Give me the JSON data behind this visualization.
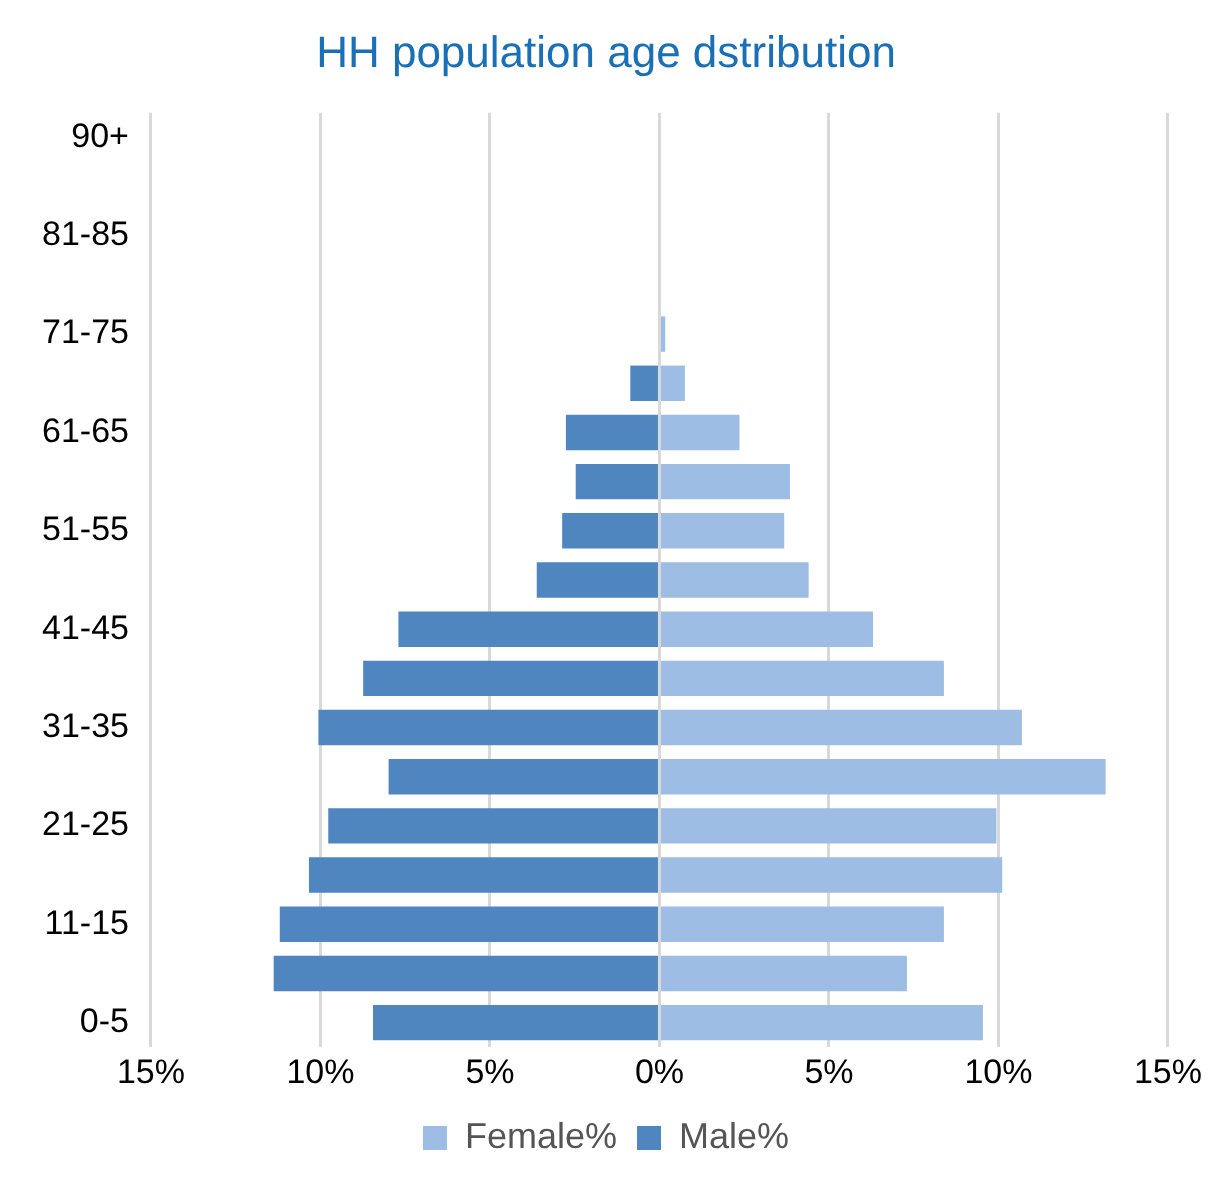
{
  "chart_data": {
    "type": "bar",
    "orientation": "horizontal",
    "stacked": true,
    "title": "HH population age dstribution",
    "categories": [
      "90+",
      null,
      "81-85",
      null,
      "71-75",
      null,
      "61-65",
      null,
      "51-55",
      null,
      "41-45",
      null,
      "31-35",
      null,
      "21-25",
      null,
      "11-15",
      null,
      "0-5"
    ],
    "series": [
      {
        "name": "Female%",
        "color": "#9dbde4",
        "values": [
          null,
          null,
          null,
          null,
          0.17,
          0.75,
          2.36,
          3.85,
          3.68,
          4.4,
          6.3,
          8.39,
          10.69,
          13.16,
          9.94,
          10.11,
          8.39,
          7.3,
          9.54
        ]
      },
      {
        "name": "Male%",
        "color": "#4f86c0",
        "values": [
          null,
          null,
          null,
          null,
          null,
          -0.86,
          -2.76,
          -2.47,
          -2.87,
          -3.62,
          -7.7,
          -8.74,
          -10.06,
          -7.99,
          -9.77,
          -10.34,
          -11.2,
          -11.38,
          -8.45
        ]
      }
    ],
    "xlim": [
      -15,
      15
    ],
    "xticks": [
      {
        "value": -15,
        "label": "15%"
      },
      {
        "value": -10,
        "label": "10%"
      },
      {
        "value": -5,
        "label": "5%"
      },
      {
        "value": 0,
        "label": "0%"
      },
      {
        "value": 5,
        "label": "5%"
      },
      {
        "value": 10,
        "label": "10%"
      },
      {
        "value": 15,
        "label": "15%"
      }
    ],
    "grid": "x",
    "legend": "bottom"
  }
}
